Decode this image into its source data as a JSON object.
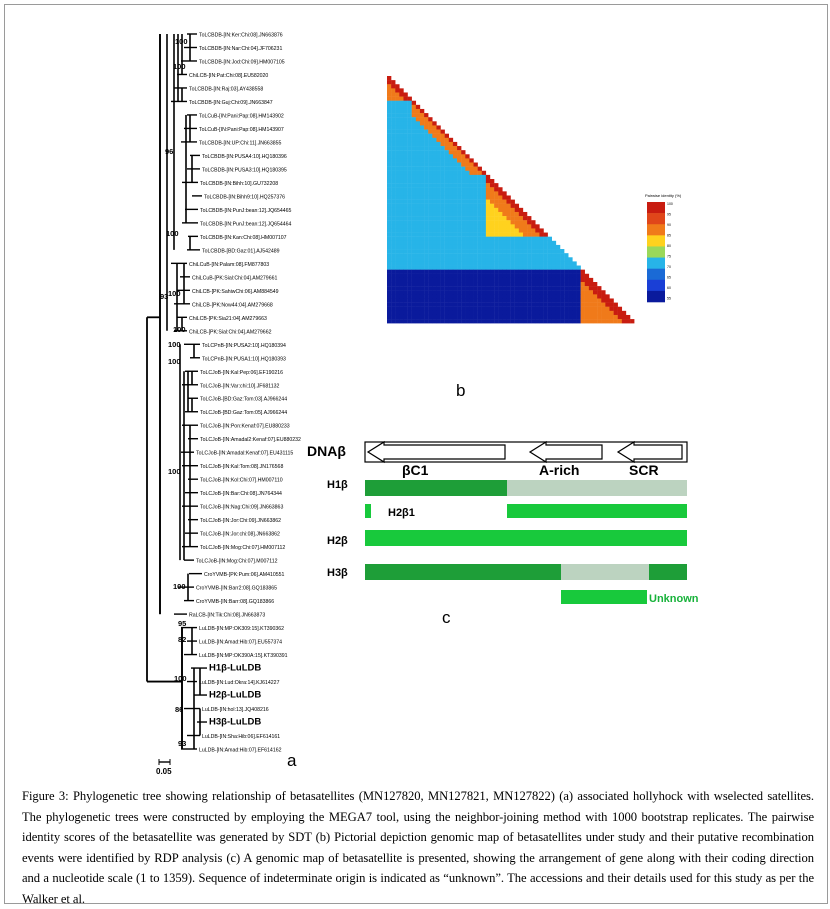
{
  "panels": {
    "a": "a",
    "b": "b",
    "c": "c"
  },
  "tree": {
    "scale_label": "0.05",
    "leaves": [
      "ToLCBDB-[IN:Ker:Chi:08].JN663876",
      "ToLCBDB-[IN:Nar:Chi:04].JF706231",
      "ToLCBDB-[IN:Jod:Chi:09].HM007105",
      "ChiLCB-[IN:Pat:Chi:08].EU582020",
      "ToLCBDB-[IN:Raj:03].AY438558",
      "ToLCBDB-[IN:Guj:Chi:09].JN663847",
      "ToLCuB-[IN:Pani:Pap:08].HM143902",
      "ToLCuB-[IN:Pani:Pap:08].HM143907",
      "ToLCBDB-[IN:UP:Chi:11].JN663855",
      "ToLCBDB-[IN:PUSA4:10].HQ180396",
      "ToLCBDB-[IN:PUSA3:10].HQ180395",
      "ToLCBDB-[IN:Bihh:10].GU732208",
      "ToLCBDB-[IN:Bihh9:10].HQ257376",
      "ToLCBDB-[IN:PunJ:bean:12].JQ654465",
      "ToLCBDB-[IN:PunJ:bean:12].JQ654464",
      "ToLCBDB-[IN:Kan:Chi:08].HM007107",
      "ToLCBDB-[BD:Gaz:01].AJ542489",
      "ChiLCuB-[IN:Palam:08].FM877803",
      "ChiLCuB-[PK:Sial:Chi:04].AM279661",
      "ChiLCB-[PK:SahiwChi:06].AM884549",
      "ChiLCB-[PK:Now44:04].AM279668",
      "ChiLCB-[PK:Sia21:04].AM279663",
      "ChiLCB-[PK:Sial:Chi:04].AM279662",
      "ToLCPnB-[IN:PUSA2:10].HQ180394",
      "ToLCPnB-[IN:PUSA1:10].HQ180393",
      "ToLCJoB-[IN:Kal:Pep:06].EF190216",
      "ToLCJoB-[IN:Var:chi:10].JF681132",
      "ToLCJoB-[BD:Gaz:Tom:03].AJ966244",
      "ToLCJoB-[BD:Gaz:Tom:05].AJ966244",
      "ToLCJoB-[IN:Pon:Kenaf:07].EU880233",
      "ToLCJoB-[IN:Amadal2:Kenaf:07].EU880232",
      "ToLCJoB-[IN:Amadal:Kenaf:07].EU431115",
      "ToLCJoB-[IN:Kal:Tom:08].JN176568",
      "ToLCJoB-[IN:Kol:Chi:07].HM007110",
      "ToLCJoB-[IN:Bar:Chi:08].JN764344",
      "ToLCJoB-[IN:Nag:Chi:09].JN663863",
      "ToLCJoB-[IN:Jor:Chi:09].JN663862",
      "ToLCJoB-[IN:Jor:chi:08].JN663862",
      "ToLCJoB-[IN:Mog:Chi:07].HM007112",
      "ToLCJoB-[IN:Mog:Chi:07].M007112",
      "CroYVMB-[PK:Pum:06].AM410551",
      "CroYVMB-[IN:Barr2:08].GQ183865",
      "CroYVMB-[IN:Barr:08].GQ183866",
      "RaLCB-[IN:Tik:Chi:08].JN663873",
      "LuLDB-[IN:MP:OK309:15].KT390362",
      "LuLDB-[IN:Amad:Hib:07].EU557374",
      "LuLDB-[IN:MP:OK390A:15].KT390391",
      "H1β-LuLDB",
      "LuLDB-[IN:Lud:Okra:14].KJ614227",
      "H2β-LuLDB",
      "LuLDB-[IN:hol:13].JQ408216",
      "H3β-LuLDB",
      "LuLDB-[IN:Sha:Hib:06].EF614161",
      "LuLDB-[IN:Amad:Hib:07].EF614162"
    ],
    "bootstrap": [
      "100",
      "100",
      "96",
      "100",
      "100",
      "93",
      "100",
      "100",
      "100",
      "100",
      "100",
      "95",
      "82",
      "100",
      "86",
      "93"
    ]
  },
  "heatmap": {
    "legend_title": "Pairwise identity (%)",
    "legend_ticks": [
      "100",
      "95",
      "90",
      "85",
      "80",
      "75",
      "70",
      "65",
      "60",
      "55"
    ],
    "colors": {
      "very_high": "#c81c10",
      "high": "#f07a1a",
      "mid_high": "#ffd21e",
      "mid": "#27b4e8",
      "low": "#1a3fd6",
      "very_low": "#0a1a9c"
    }
  },
  "genome_map": {
    "title": "DNAβ",
    "regions": [
      "βC1",
      "A-rich",
      "SCR"
    ],
    "rows": [
      {
        "label": "H1β",
        "sub": ""
      },
      {
        "label": "",
        "sub": "H2β1"
      },
      {
        "label": "H2β",
        "sub": ""
      },
      {
        "label": "H3β",
        "sub": ""
      }
    ],
    "unknown_label": "Unknown",
    "colors": {
      "dark_green": "#1e9e38",
      "bright_green": "#18c93c",
      "gray": "#bcd3c0",
      "unknown_text": "#17b23a"
    }
  },
  "caption": "Figure 3: Phylogenetic tree showing relationship of betasatellites (MN127820, MN127821, MN127822) (a) associated hollyhock with wselected satellites. The phylogenetic trees were constructed by employing the MEGA7 tool, using the neighbor-joining method with 1000 bootstrap replicates. The pairwise identity scores of the betasatellite was generated by SDT (b) Pictorial depiction genomic map of betasatellites under study and their putative recombination events were identified by RDP analysis (c) A genomic map of betasatellite is presented, showing the arrangement of gene along with their coding direction and a nucleotide scale (1 to 1359). Sequence of indeterminate origin is indicated as “unknown”.  The accessions and their details used for this study as per the Walker et al."
}
